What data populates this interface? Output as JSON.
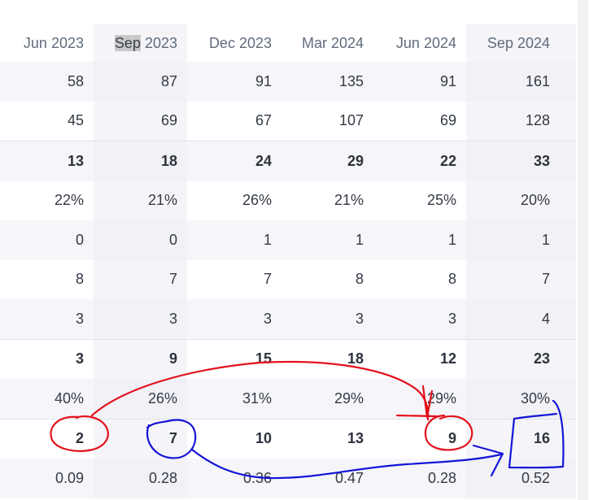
{
  "table": {
    "headers": [
      {
        "label": "Jun 2023"
      },
      {
        "label_highlight": "Sep",
        "label_rest": " 2023"
      },
      {
        "label": "Dec 2023"
      },
      {
        "label": "Mar 2024"
      },
      {
        "label": "Jun 2024"
      },
      {
        "label": "Sep 2024"
      }
    ],
    "rows": [
      {
        "cells": [
          "58",
          "87",
          "91",
          "135",
          "91",
          "161"
        ]
      },
      {
        "cells": [
          "45",
          "69",
          "67",
          "107",
          "69",
          "128"
        ]
      },
      {
        "cells": [
          "13",
          "18",
          "24",
          "29",
          "22",
          "33"
        ]
      },
      {
        "cells": [
          "22%",
          "21%",
          "26%",
          "21%",
          "25%",
          "20%"
        ]
      },
      {
        "cells": [
          "0",
          "0",
          "1",
          "1",
          "1",
          "1"
        ]
      },
      {
        "cells": [
          "8",
          "7",
          "7",
          "8",
          "8",
          "7"
        ]
      },
      {
        "cells": [
          "3",
          "3",
          "3",
          "3",
          "3",
          "4"
        ]
      },
      {
        "cells": [
          "3",
          "9",
          "15",
          "18",
          "12",
          "23"
        ]
      },
      {
        "cells": [
          "40%",
          "26%",
          "31%",
          "29%",
          "29%",
          "30%"
        ]
      },
      {
        "cells": [
          "2",
          "7",
          "10",
          "13",
          "9",
          "16"
        ]
      },
      {
        "cells": [
          "0.09",
          "0.28",
          "0.36",
          "0.47",
          "0.28",
          "0.52"
        ]
      }
    ]
  },
  "annotations": {
    "red_color": "#e3101a",
    "blue_color": "#1414d8"
  }
}
